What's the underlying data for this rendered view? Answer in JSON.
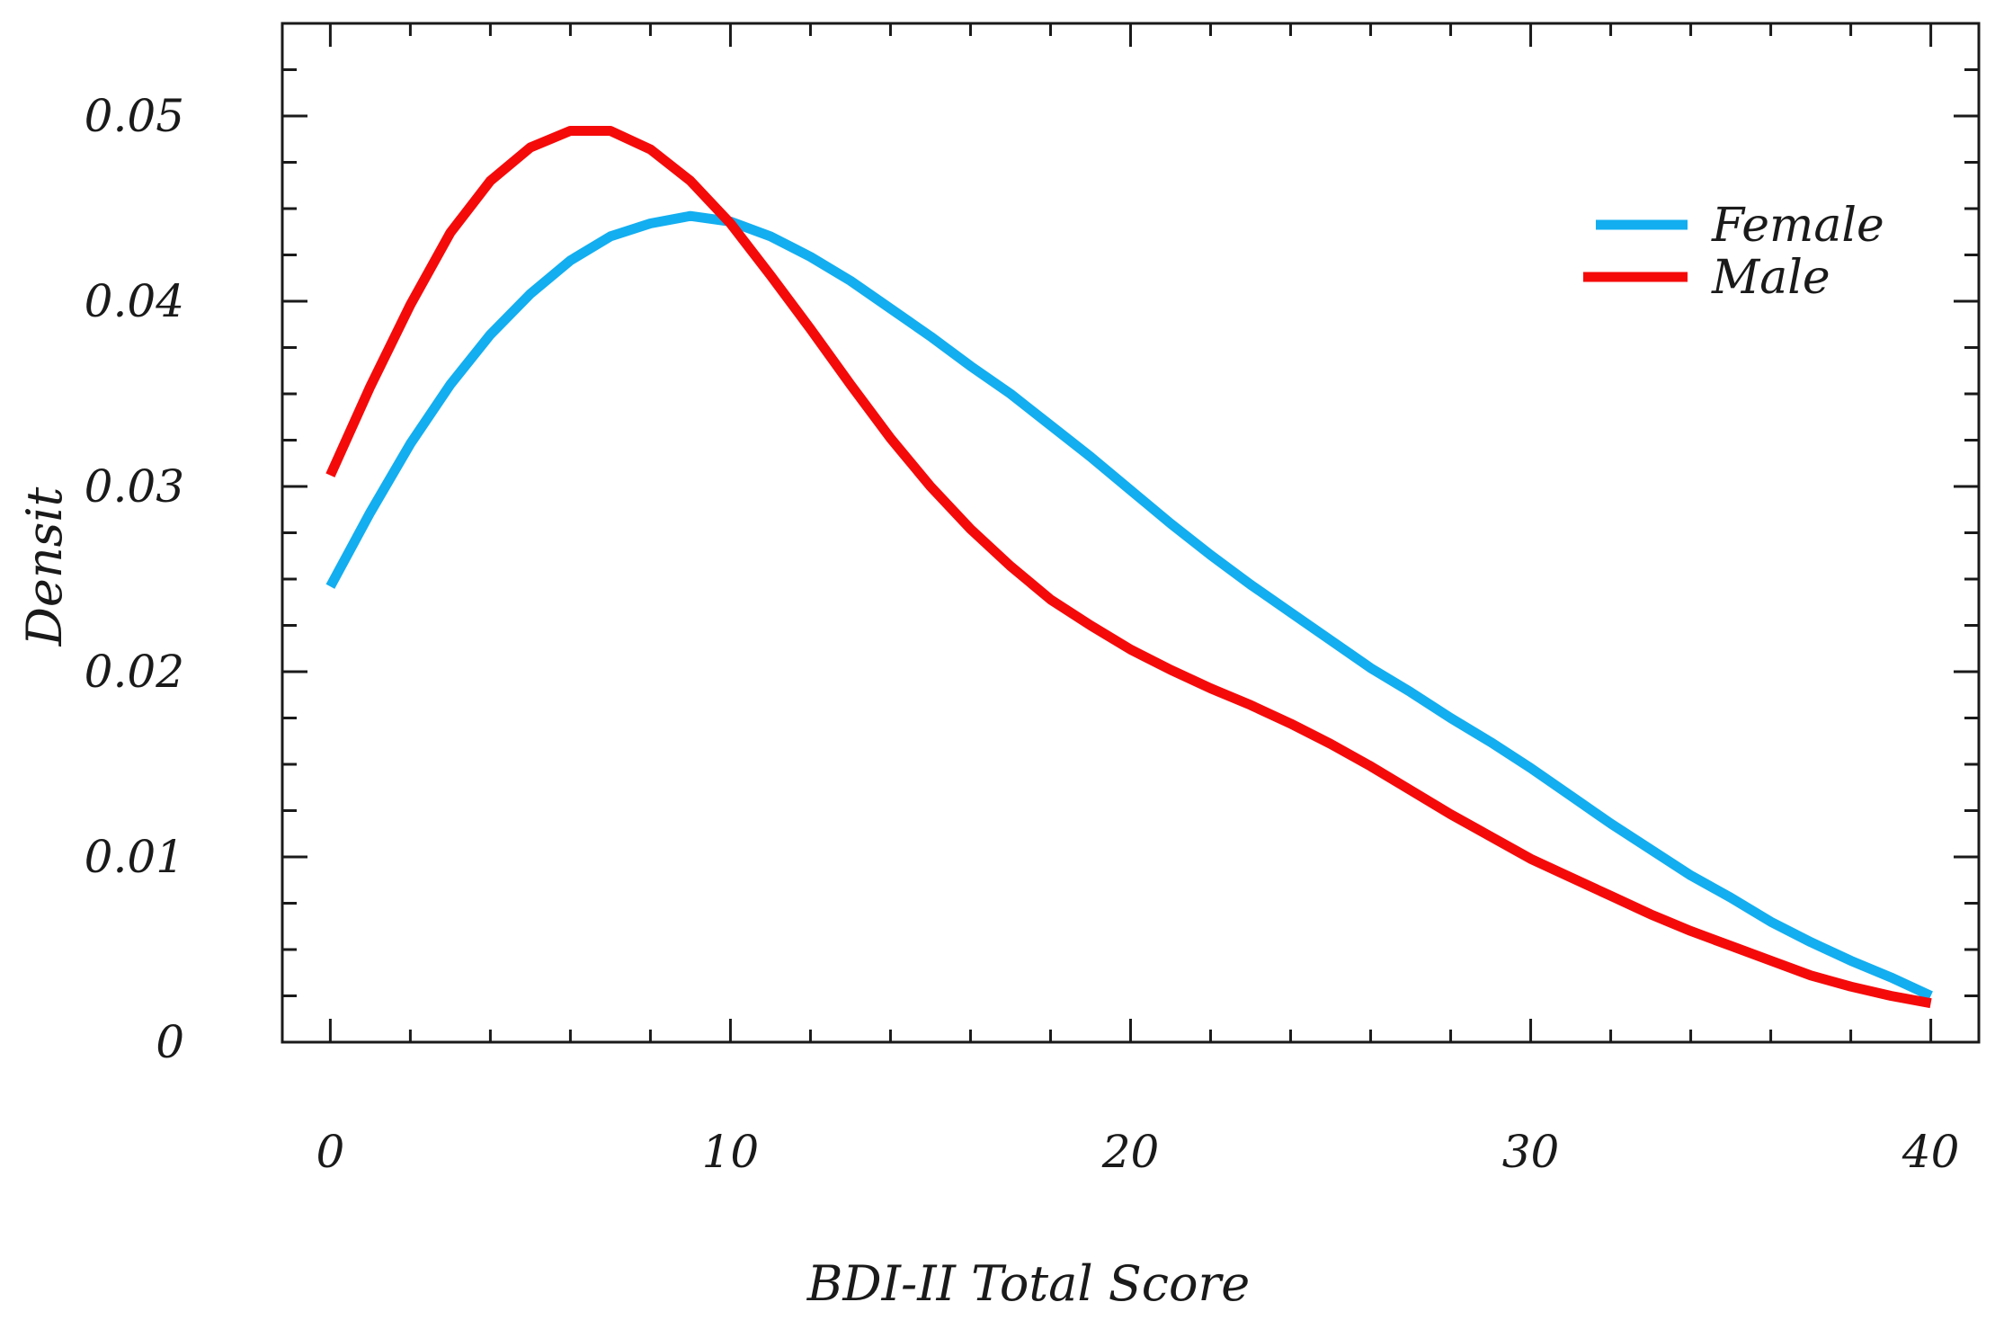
{
  "chart_data": {
    "type": "line",
    "title": "",
    "xlabel": "BDI-II Total Score",
    "ylabel": "Densit",
    "xlim": [
      -1.2,
      41.2
    ],
    "ylim": [
      0,
      0.055
    ],
    "x_ticks": [
      0,
      10,
      20,
      30,
      40
    ],
    "x_tick_labels": [
      "0",
      "10",
      "20",
      "30",
      "40"
    ],
    "y_ticks": [
      0,
      0.01,
      0.02,
      0.03,
      0.04,
      0.05
    ],
    "y_tick_labels": [
      "0",
      "0.01",
      "0.02",
      "0.03",
      "0.04",
      "0.05"
    ],
    "grid": false,
    "legend_position": "top-right",
    "series": [
      {
        "name": "Female",
        "color": "#12aef0",
        "x": [
          0,
          1,
          2,
          3,
          4,
          5,
          6,
          7,
          8,
          9,
          10,
          11,
          12,
          13,
          14,
          15,
          16,
          17,
          18,
          19,
          20,
          21,
          22,
          23,
          24,
          25,
          26,
          27,
          28,
          29,
          30,
          31,
          32,
          33,
          34,
          35,
          36,
          37,
          38,
          39,
          40
        ],
        "y": [
          0.0246,
          0.0286,
          0.0323,
          0.0355,
          0.0382,
          0.0404,
          0.0422,
          0.0435,
          0.0442,
          0.0446,
          0.0443,
          0.0435,
          0.0424,
          0.0411,
          0.0396,
          0.0381,
          0.0365,
          0.035,
          0.0333,
          0.0316,
          0.0298,
          0.028,
          0.0263,
          0.0247,
          0.0232,
          0.0217,
          0.0202,
          0.0189,
          0.0175,
          0.0162,
          0.0148,
          0.0133,
          0.0118,
          0.0104,
          0.009,
          0.0078,
          0.0065,
          0.0054,
          0.0044,
          0.0035,
          0.0025
        ]
      },
      {
        "name": "Male",
        "color": "#f50a0a",
        "x": [
          0,
          1,
          2,
          3,
          4,
          5,
          6,
          7,
          8,
          9,
          10,
          11,
          12,
          13,
          14,
          15,
          16,
          17,
          18,
          19,
          20,
          21,
          22,
          23,
          24,
          25,
          26,
          27,
          28,
          29,
          30,
          31,
          32,
          33,
          34,
          35,
          36,
          37,
          38,
          39,
          40
        ],
        "y": [
          0.0306,
          0.0354,
          0.0398,
          0.0437,
          0.0465,
          0.0483,
          0.0492,
          0.0492,
          0.0482,
          0.0465,
          0.0442,
          0.0414,
          0.0385,
          0.0355,
          0.0326,
          0.03,
          0.0277,
          0.0257,
          0.0239,
          0.0225,
          0.0212,
          0.0201,
          0.0191,
          0.0182,
          0.0172,
          0.0161,
          0.0149,
          0.0136,
          0.0123,
          0.0111,
          0.0099,
          0.0089,
          0.0079,
          0.0069,
          0.006,
          0.0052,
          0.0044,
          0.0036,
          0.003,
          0.0025,
          0.0021
        ]
      }
    ]
  }
}
